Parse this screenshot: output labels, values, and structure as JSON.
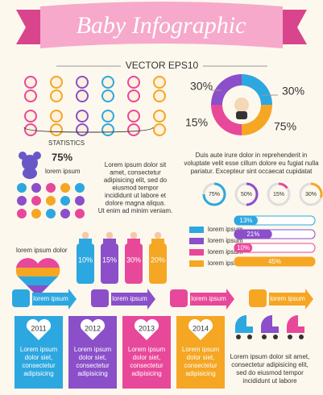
{
  "header": {
    "title": "Baby Infographic",
    "subtitle": "VECTOR EPS10"
  },
  "statistics": {
    "label": "STATISTICS",
    "donut_labels": [
      "30%",
      "30%",
      "15%",
      "75%"
    ]
  },
  "teddy": {
    "percent": "75%",
    "caption": "lorem ipsum"
  },
  "paragraphs": {
    "center": [
      "Lorem ipsum dolor sit",
      "amet, consectetur",
      "adipisicing elit, sed do",
      "eiusmod tempor",
      "incididunt ut labore et",
      "dolore magna aliqua.",
      "Ut enim ad minim veniam."
    ],
    "right": [
      "Duis aute irure dolor in reprehenderit in",
      "voluptate velit esse cillum dolore eu fugiat nulla",
      "pariatur. Excepteur sint occaecat cupidatat"
    ],
    "bottom": [
      "Lorem ipsum dolor sit amet,",
      "consectetur adipisicing elit,",
      "sed do eiusmod tempor",
      "incididunt ut labore"
    ]
  },
  "rings": [
    {
      "value": 75,
      "label": "75%"
    },
    {
      "value": 50,
      "label": "50%"
    },
    {
      "value": 15,
      "label": "15%"
    },
    {
      "value": 30,
      "label": "30%"
    }
  ],
  "heart": {
    "caption": "lorem ipsum dolor"
  },
  "bottles": [
    "10%",
    "15%",
    "30%",
    "20%"
  ],
  "legend": [
    "lorem ipsum",
    "lorem ipsum",
    "lorem ipsum",
    "lorem ipsum"
  ],
  "bars": [
    {
      "value": 13,
      "label": "13%"
    },
    {
      "value": 21,
      "label": "21%"
    },
    {
      "value": 10,
      "label": "10%"
    },
    {
      "value": 45,
      "label": "45%"
    }
  ],
  "arrows": [
    "lorem ipsum",
    "lorem ipsum",
    "lorem ipsum",
    "lorem ipsum"
  ],
  "cards": [
    {
      "year": "2011",
      "text": [
        "Lorem ipsum",
        "dolor siet,",
        "consectetur",
        "adipisicing"
      ]
    },
    {
      "year": "2012",
      "text": [
        "Lorem ipsum",
        "dolor siet,",
        "consectetur",
        "adipisicing"
      ]
    },
    {
      "year": "2013",
      "text": [
        "Lorem ipsum",
        "dolor siet,",
        "consectetur",
        "adipisicing"
      ]
    },
    {
      "year": "2014",
      "text": [
        "Lorem ipsum",
        "dolor siet,",
        "consectetur",
        "adipisicing"
      ]
    }
  ]
}
